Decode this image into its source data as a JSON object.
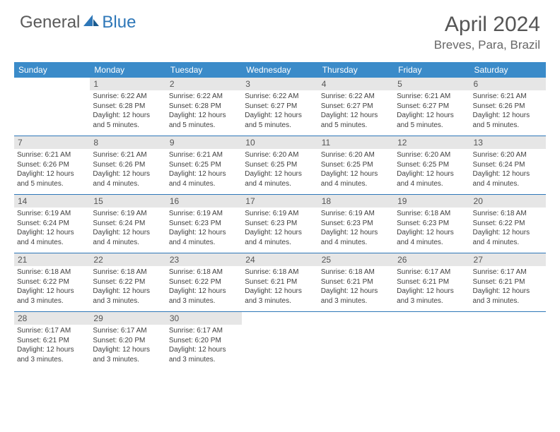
{
  "logo": {
    "text1": "General",
    "text2": "Blue"
  },
  "title": "April 2024",
  "location": "Breves, Para, Brazil",
  "colors": {
    "header_bg": "#3b8bc9",
    "week_divider": "#2e77b8",
    "daynum_bg": "#e6e6e6",
    "text": "#404040",
    "title_text": "#555555"
  },
  "layout": {
    "columns": 7,
    "rows": 5,
    "title_fontsize": 30,
    "location_fontsize": 17,
    "dow_fontsize": 12,
    "body_fontsize": 10
  },
  "dow": [
    "Sunday",
    "Monday",
    "Tuesday",
    "Wednesday",
    "Thursday",
    "Friday",
    "Saturday"
  ],
  "weeks": [
    [
      {
        "n": "",
        "empty": true
      },
      {
        "n": "1",
        "sr": "Sunrise: 6:22 AM",
        "ss": "Sunset: 6:28 PM",
        "d1": "Daylight: 12 hours",
        "d2": "and 5 minutes."
      },
      {
        "n": "2",
        "sr": "Sunrise: 6:22 AM",
        "ss": "Sunset: 6:28 PM",
        "d1": "Daylight: 12 hours",
        "d2": "and 5 minutes."
      },
      {
        "n": "3",
        "sr": "Sunrise: 6:22 AM",
        "ss": "Sunset: 6:27 PM",
        "d1": "Daylight: 12 hours",
        "d2": "and 5 minutes."
      },
      {
        "n": "4",
        "sr": "Sunrise: 6:22 AM",
        "ss": "Sunset: 6:27 PM",
        "d1": "Daylight: 12 hours",
        "d2": "and 5 minutes."
      },
      {
        "n": "5",
        "sr": "Sunrise: 6:21 AM",
        "ss": "Sunset: 6:27 PM",
        "d1": "Daylight: 12 hours",
        "d2": "and 5 minutes."
      },
      {
        "n": "6",
        "sr": "Sunrise: 6:21 AM",
        "ss": "Sunset: 6:26 PM",
        "d1": "Daylight: 12 hours",
        "d2": "and 5 minutes."
      }
    ],
    [
      {
        "n": "7",
        "sr": "Sunrise: 6:21 AM",
        "ss": "Sunset: 6:26 PM",
        "d1": "Daylight: 12 hours",
        "d2": "and 5 minutes."
      },
      {
        "n": "8",
        "sr": "Sunrise: 6:21 AM",
        "ss": "Sunset: 6:26 PM",
        "d1": "Daylight: 12 hours",
        "d2": "and 4 minutes."
      },
      {
        "n": "9",
        "sr": "Sunrise: 6:21 AM",
        "ss": "Sunset: 6:25 PM",
        "d1": "Daylight: 12 hours",
        "d2": "and 4 minutes."
      },
      {
        "n": "10",
        "sr": "Sunrise: 6:20 AM",
        "ss": "Sunset: 6:25 PM",
        "d1": "Daylight: 12 hours",
        "d2": "and 4 minutes."
      },
      {
        "n": "11",
        "sr": "Sunrise: 6:20 AM",
        "ss": "Sunset: 6:25 PM",
        "d1": "Daylight: 12 hours",
        "d2": "and 4 minutes."
      },
      {
        "n": "12",
        "sr": "Sunrise: 6:20 AM",
        "ss": "Sunset: 6:25 PM",
        "d1": "Daylight: 12 hours",
        "d2": "and 4 minutes."
      },
      {
        "n": "13",
        "sr": "Sunrise: 6:20 AM",
        "ss": "Sunset: 6:24 PM",
        "d1": "Daylight: 12 hours",
        "d2": "and 4 minutes."
      }
    ],
    [
      {
        "n": "14",
        "sr": "Sunrise: 6:19 AM",
        "ss": "Sunset: 6:24 PM",
        "d1": "Daylight: 12 hours",
        "d2": "and 4 minutes."
      },
      {
        "n": "15",
        "sr": "Sunrise: 6:19 AM",
        "ss": "Sunset: 6:24 PM",
        "d1": "Daylight: 12 hours",
        "d2": "and 4 minutes."
      },
      {
        "n": "16",
        "sr": "Sunrise: 6:19 AM",
        "ss": "Sunset: 6:23 PM",
        "d1": "Daylight: 12 hours",
        "d2": "and 4 minutes."
      },
      {
        "n": "17",
        "sr": "Sunrise: 6:19 AM",
        "ss": "Sunset: 6:23 PM",
        "d1": "Daylight: 12 hours",
        "d2": "and 4 minutes."
      },
      {
        "n": "18",
        "sr": "Sunrise: 6:19 AM",
        "ss": "Sunset: 6:23 PM",
        "d1": "Daylight: 12 hours",
        "d2": "and 4 minutes."
      },
      {
        "n": "19",
        "sr": "Sunrise: 6:18 AM",
        "ss": "Sunset: 6:23 PM",
        "d1": "Daylight: 12 hours",
        "d2": "and 4 minutes."
      },
      {
        "n": "20",
        "sr": "Sunrise: 6:18 AM",
        "ss": "Sunset: 6:22 PM",
        "d1": "Daylight: 12 hours",
        "d2": "and 4 minutes."
      }
    ],
    [
      {
        "n": "21",
        "sr": "Sunrise: 6:18 AM",
        "ss": "Sunset: 6:22 PM",
        "d1": "Daylight: 12 hours",
        "d2": "and 3 minutes."
      },
      {
        "n": "22",
        "sr": "Sunrise: 6:18 AM",
        "ss": "Sunset: 6:22 PM",
        "d1": "Daylight: 12 hours",
        "d2": "and 3 minutes."
      },
      {
        "n": "23",
        "sr": "Sunrise: 6:18 AM",
        "ss": "Sunset: 6:22 PM",
        "d1": "Daylight: 12 hours",
        "d2": "and 3 minutes."
      },
      {
        "n": "24",
        "sr": "Sunrise: 6:18 AM",
        "ss": "Sunset: 6:21 PM",
        "d1": "Daylight: 12 hours",
        "d2": "and 3 minutes."
      },
      {
        "n": "25",
        "sr": "Sunrise: 6:18 AM",
        "ss": "Sunset: 6:21 PM",
        "d1": "Daylight: 12 hours",
        "d2": "and 3 minutes."
      },
      {
        "n": "26",
        "sr": "Sunrise: 6:17 AM",
        "ss": "Sunset: 6:21 PM",
        "d1": "Daylight: 12 hours",
        "d2": "and 3 minutes."
      },
      {
        "n": "27",
        "sr": "Sunrise: 6:17 AM",
        "ss": "Sunset: 6:21 PM",
        "d1": "Daylight: 12 hours",
        "d2": "and 3 minutes."
      }
    ],
    [
      {
        "n": "28",
        "sr": "Sunrise: 6:17 AM",
        "ss": "Sunset: 6:21 PM",
        "d1": "Daylight: 12 hours",
        "d2": "and 3 minutes."
      },
      {
        "n": "29",
        "sr": "Sunrise: 6:17 AM",
        "ss": "Sunset: 6:20 PM",
        "d1": "Daylight: 12 hours",
        "d2": "and 3 minutes."
      },
      {
        "n": "30",
        "sr": "Sunrise: 6:17 AM",
        "ss": "Sunset: 6:20 PM",
        "d1": "Daylight: 12 hours",
        "d2": "and 3 minutes."
      },
      {
        "n": "",
        "empty": true
      },
      {
        "n": "",
        "empty": true
      },
      {
        "n": "",
        "empty": true
      },
      {
        "n": "",
        "empty": true
      }
    ]
  ]
}
